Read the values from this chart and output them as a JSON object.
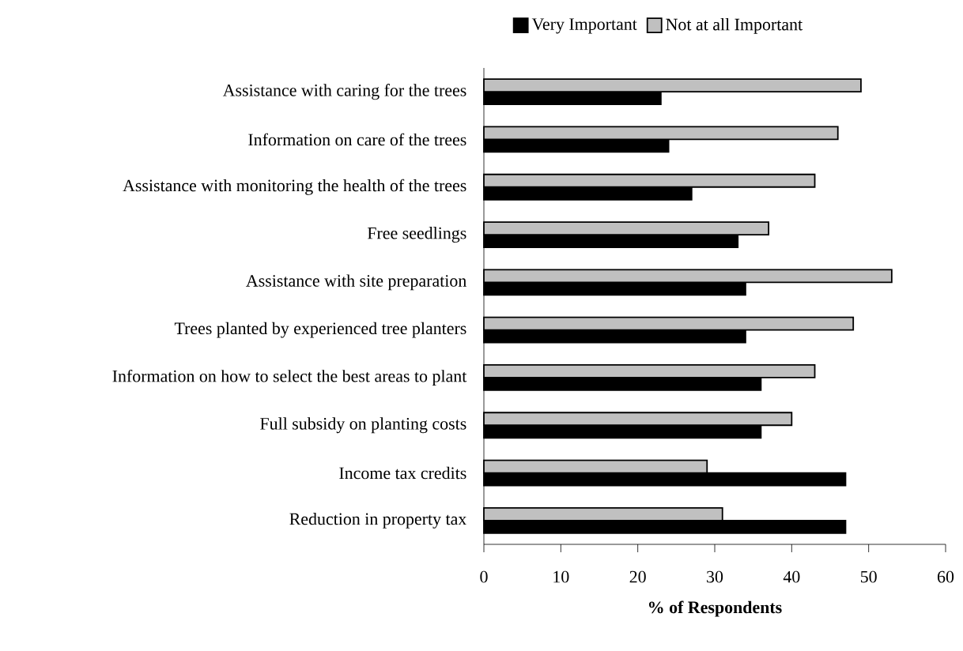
{
  "chart_data": {
    "type": "bar",
    "orientation": "horizontal",
    "xlabel": "% of Respondents",
    "categories": [
      "Assistance with caring for the trees",
      "Information on care of the trees",
      "Assistance with monitoring the health of the trees",
      "Free seedlings",
      "Assistance with site preparation",
      "Trees planted by experienced tree planters",
      "Information on how to select the best areas to plant",
      "Full subsidy on planting costs",
      "Income tax credits",
      "Reduction in property tax"
    ],
    "series": [
      {
        "name": "Very Important",
        "color": "#000000",
        "values": [
          23,
          24,
          27,
          33,
          34,
          34,
          36,
          36,
          47,
          47
        ]
      },
      {
        "name": "Not at all Important",
        "color": "#c0c0c0",
        "values": [
          49,
          46,
          43,
          37,
          53,
          48,
          43,
          40,
          29,
          31
        ]
      }
    ],
    "xlim": [
      0,
      60
    ],
    "xticks": [
      0,
      10,
      20,
      30,
      40,
      50,
      60
    ],
    "legend": "top",
    "grid": false
  }
}
